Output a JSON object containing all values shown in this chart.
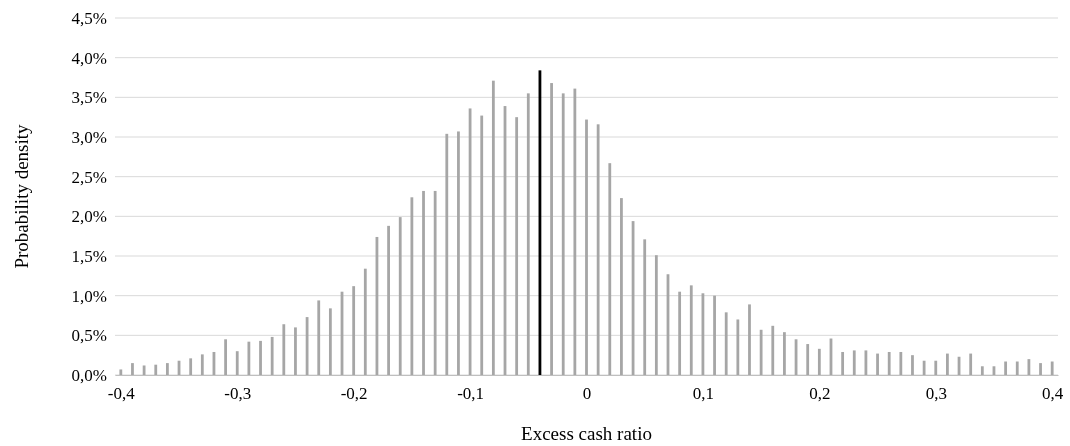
{
  "chart_data": {
    "type": "bar",
    "xlabel": "Excess cash ratio",
    "ylabel": "Probability density",
    "x": [
      -0.4,
      -0.39,
      -0.38,
      -0.37,
      -0.36,
      -0.35,
      -0.34,
      -0.33,
      -0.32,
      -0.31,
      -0.3,
      -0.29,
      -0.28,
      -0.27,
      -0.26,
      -0.25,
      -0.24,
      -0.23,
      -0.22,
      -0.21,
      -0.2,
      -0.19,
      -0.18,
      -0.17,
      -0.16,
      -0.15,
      -0.14,
      -0.13,
      -0.12,
      -0.11,
      -0.1,
      -0.09,
      -0.08,
      -0.07,
      -0.06,
      -0.05,
      -0.04,
      -0.03,
      -0.02,
      -0.01,
      0,
      0.01,
      0.02,
      0.03,
      0.04,
      0.05,
      0.06,
      0.07,
      0.08,
      0.09,
      0.1,
      0.11,
      0.12,
      0.13,
      0.14,
      0.15,
      0.16,
      0.17,
      0.18,
      0.19,
      0.2,
      0.21,
      0.22,
      0.23,
      0.24,
      0.25,
      0.26,
      0.27,
      0.28,
      0.29,
      0.3,
      0.31,
      0.32,
      0.33,
      0.34,
      0.35,
      0.36,
      0.37,
      0.38,
      0.39,
      0.4
    ],
    "values": [
      0.07,
      0.15,
      0.12,
      0.13,
      0.15,
      0.18,
      0.21,
      0.26,
      0.29,
      0.45,
      0.3,
      0.42,
      0.43,
      0.48,
      0.64,
      0.6,
      0.73,
      0.94,
      0.84,
      1.05,
      1.12,
      1.34,
      1.74,
      1.88,
      1.99,
      2.24,
      2.32,
      2.32,
      3.04,
      3.07,
      3.36,
      3.27,
      3.71,
      3.39,
      3.25,
      3.55,
      3.84,
      3.68,
      3.55,
      3.61,
      3.22,
      3.16,
      2.67,
      2.23,
      1.94,
      1.71,
      1.51,
      1.27,
      1.05,
      1.13,
      1.03,
      1.0,
      0.79,
      0.7,
      0.89,
      0.57,
      0.62,
      0.54,
      0.45,
      0.39,
      0.33,
      0.46,
      0.29,
      0.31,
      0.31,
      0.27,
      0.29,
      0.29,
      0.25,
      0.18,
      0.18,
      0.27,
      0.23,
      0.27,
      0.11,
      0.11,
      0.17,
      0.17,
      0.2,
      0.15,
      0.17
    ],
    "colors": [
      "#a6a6a6",
      "#a6a6a6",
      "#a6a6a6",
      "#a6a6a6",
      "#a6a6a6",
      "#a6a6a6",
      "#a6a6a6",
      "#a6a6a6",
      "#a6a6a6",
      "#a6a6a6",
      "#a6a6a6",
      "#a6a6a6",
      "#a6a6a6",
      "#a6a6a6",
      "#a6a6a6",
      "#a6a6a6",
      "#a6a6a6",
      "#a6a6a6",
      "#a6a6a6",
      "#a6a6a6",
      "#a6a6a6",
      "#a6a6a6",
      "#a6a6a6",
      "#a6a6a6",
      "#a6a6a6",
      "#a6a6a6",
      "#a6a6a6",
      "#a6a6a6",
      "#a6a6a6",
      "#a6a6a6",
      "#a6a6a6",
      "#a6a6a6",
      "#a6a6a6",
      "#a6a6a6",
      "#a6a6a6",
      "#a6a6a6",
      "#000000",
      "#a6a6a6",
      "#a6a6a6",
      "#a6a6a6",
      "#a6a6a6",
      "#a6a6a6",
      "#a6a6a6",
      "#a6a6a6",
      "#a6a6a6",
      "#a6a6a6",
      "#a6a6a6",
      "#a6a6a6",
      "#a6a6a6",
      "#a6a6a6",
      "#a6a6a6",
      "#a6a6a6",
      "#a6a6a6",
      "#a6a6a6",
      "#a6a6a6",
      "#a6a6a6",
      "#a6a6a6",
      "#a6a6a6",
      "#a6a6a6",
      "#a6a6a6",
      "#a6a6a6",
      "#a6a6a6",
      "#a6a6a6",
      "#a6a6a6",
      "#a6a6a6",
      "#a6a6a6",
      "#a6a6a6",
      "#a6a6a6",
      "#a6a6a6",
      "#a6a6a6",
      "#a6a6a6",
      "#a6a6a6",
      "#a6a6a6",
      "#a6a6a6",
      "#a6a6a6",
      "#a6a6a6",
      "#a6a6a6",
      "#a6a6a6",
      "#a6a6a6",
      "#a6a6a6",
      "#a6a6a6"
    ],
    "xlim": [
      -0.405,
      0.405
    ],
    "xticks": [
      {
        "value": -0.4,
        "label": "-0,4"
      },
      {
        "value": -0.3,
        "label": "-0,3"
      },
      {
        "value": -0.2,
        "label": "-0,2"
      },
      {
        "value": -0.1,
        "label": "-0,1"
      },
      0,
      {
        "value": 0.1,
        "label": "0,1"
      },
      {
        "value": 0.2,
        "label": "0,2"
      },
      {
        "value": 0.3,
        "label": "0,3"
      },
      {
        "value": 0.4,
        "label": "0,4"
      }
    ],
    "ylim": [
      0,
      4.5
    ],
    "yticks": [
      {
        "value": 0,
        "label": "0,0%"
      },
      {
        "value": 0.5,
        "label": "0,5%"
      },
      {
        "value": 1,
        "label": "1,0%"
      },
      {
        "value": 1.5,
        "label": "1,5%"
      },
      {
        "value": 2,
        "label": "2,0%"
      },
      {
        "value": 2.5,
        "label": "2,5%"
      },
      {
        "value": 3,
        "label": "3,0%"
      },
      {
        "value": 3.5,
        "label": "3,5%"
      },
      {
        "value": 4,
        "label": "4,0%"
      },
      {
        "value": 4.5,
        "label": "4,5%"
      }
    ],
    "grid": "y"
  }
}
